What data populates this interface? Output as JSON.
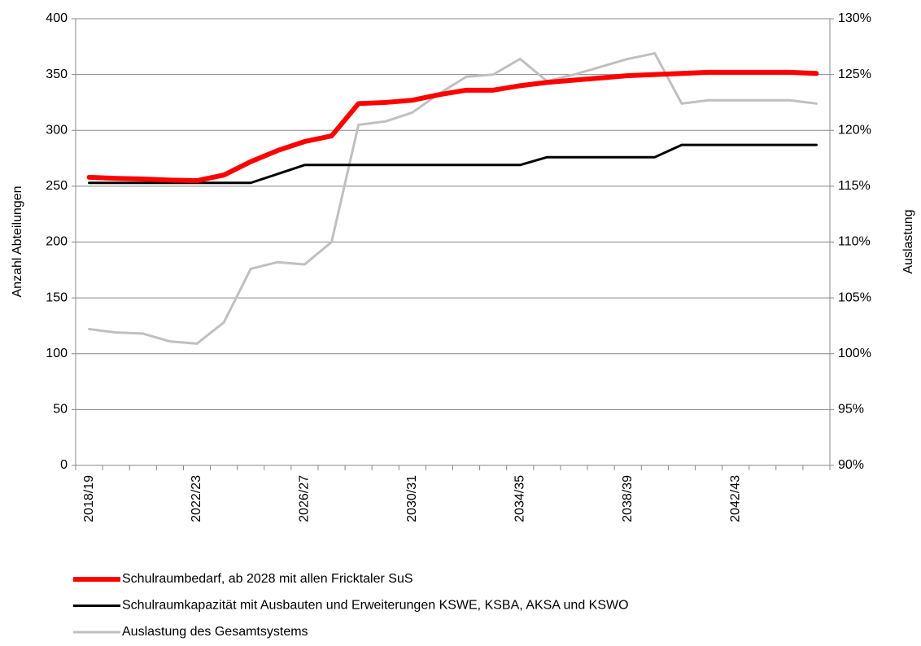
{
  "chart_data": {
    "type": "line",
    "y_label": "Anzahl Abteilungen",
    "y2_label": "Auslastung",
    "categories": [
      "2018/19",
      null,
      null,
      null,
      "2022/23",
      null,
      null,
      null,
      "2026/27",
      null,
      null,
      null,
      "2030/31",
      null,
      null,
      null,
      "2034/35",
      null,
      null,
      null,
      "2038/39",
      null,
      null,
      null,
      "2042/43",
      null,
      null,
      null
    ],
    "series": [
      {
        "name": "Schulraumbedarf, ab 2028 mit allen Fricktaler SuS",
        "color": "#ff0000",
        "values": [
          258,
          257,
          256.5,
          255.5,
          255,
          260,
          272,
          282,
          290,
          295,
          324,
          325,
          327,
          332,
          336,
          336,
          340,
          343,
          345,
          347,
          349,
          350,
          351,
          352,
          352,
          352,
          352,
          351
        ]
      },
      {
        "name": "Schulraumkapazität mit Ausbauten und Erweiterungen KSWE, KSBA, AKSA und KSWO",
        "color": "#000000",
        "values": [
          253,
          253,
          253,
          253,
          253,
          253,
          253,
          261,
          269,
          269,
          269,
          269,
          269,
          269,
          269,
          269,
          269,
          276,
          276,
          276,
          276,
          276,
          287,
          287,
          287,
          287,
          287,
          287
        ]
      },
      {
        "name": "Auslastung des Gesamtsystems",
        "color": "#c0c0c0",
        "axis": "y2",
        "values": [
          102.2,
          101.9,
          101.8,
          101.1,
          100.9,
          102.8,
          107.6,
          108.2,
          108.0,
          110.0,
          120.5,
          120.8,
          121.6,
          123.3,
          124.8,
          125.0,
          126.4,
          124.4,
          125.0,
          125.7,
          126.4,
          126.9,
          122.4,
          122.7,
          122.7,
          122.7,
          122.7,
          122.4
        ]
      }
    ],
    "ylim": [
      0,
      400
    ],
    "yticks": [
      0,
      50,
      100,
      150,
      200,
      250,
      300,
      350,
      400
    ],
    "y2lim": [
      90,
      130
    ],
    "y2ticks": [
      {
        "value": 90,
        "label": "90%"
      },
      {
        "value": 95,
        "label": "95%"
      },
      {
        "value": 100,
        "label": "100%"
      },
      {
        "value": 105,
        "label": "105%"
      },
      {
        "value": 110,
        "label": "110%"
      },
      {
        "value": 115,
        "label": "115%"
      },
      {
        "value": 120,
        "label": "120%"
      },
      {
        "value": 125,
        "label": "125%"
      },
      {
        "value": 130,
        "label": "130%"
      }
    ],
    "grid": true,
    "legend": "bottom"
  }
}
